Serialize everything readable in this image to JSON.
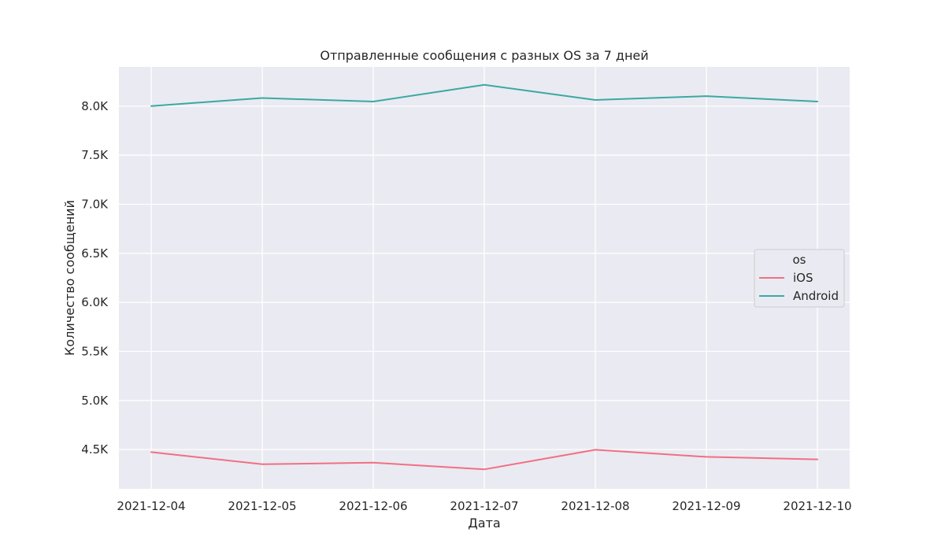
{
  "chart_data": {
    "type": "line",
    "title": "Отправленные сообщения с разных OS за 7 дней",
    "xlabel": "Дата",
    "ylabel": "Количество сообщений",
    "x": [
      "2021-12-04",
      "2021-12-05",
      "2021-12-06",
      "2021-12-07",
      "2021-12-08",
      "2021-12-09",
      "2021-12-10"
    ],
    "ylim": [
      4100,
      8400
    ],
    "yticks": [
      4500,
      5000,
      5500,
      6000,
      6500,
      7000,
      7500,
      8000
    ],
    "ytick_labels": [
      "4.5K",
      "5.0K",
      "5.5K",
      "6.0K",
      "6.5K",
      "7.0K",
      "7.5K",
      "8.0K"
    ],
    "grid": true,
    "legend": {
      "title": "os",
      "placement": "center-right"
    },
    "series": [
      {
        "name": "iOS",
        "color": "#f07083",
        "values": [
          4474,
          4350,
          4366,
          4298,
          4498,
          4426,
          4400
        ]
      },
      {
        "name": "Android",
        "color": "#3ba9a1",
        "values": [
          8001,
          8083,
          8047,
          8217,
          8063,
          8102,
          8047
        ]
      }
    ],
    "colors": {
      "plot_background": "#eaeaf2",
      "grid": "#ffffff",
      "text": "#262626"
    }
  }
}
